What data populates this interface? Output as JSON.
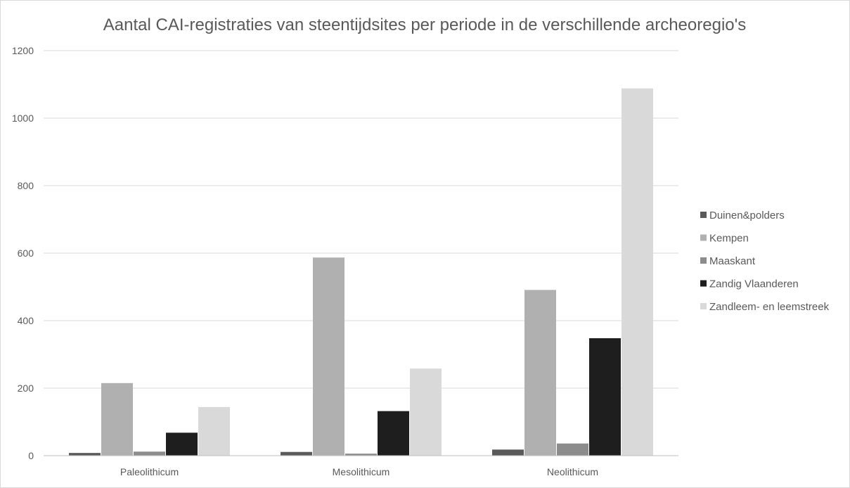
{
  "chart_data": {
    "type": "bar",
    "title": "Aantal CAI-registraties van steentijdsites per periode in de verschillende archeoregio's",
    "xlabel": "",
    "ylabel": "",
    "categories": [
      "Paleolithicum",
      "Mesolithicum",
      "Neolithicum"
    ],
    "ylim": [
      0,
      1200
    ],
    "yticks": [
      "0",
      "200",
      "400",
      "600",
      "800",
      "1000",
      "1200"
    ],
    "grid": true,
    "legend_position": "right",
    "series": [
      {
        "name": "Duinen&polders",
        "color": "#595959",
        "values": [
          8,
          11,
          18
        ]
      },
      {
        "name": "Kempen",
        "color": "#b0b0b0",
        "values": [
          215,
          587,
          491
        ]
      },
      {
        "name": "Maaskant",
        "color": "#8c8c8c",
        "values": [
          12,
          6,
          36
        ]
      },
      {
        "name": "Zandig Vlaanderen",
        "color": "#1e1e1e",
        "values": [
          68,
          132,
          348
        ]
      },
      {
        "name": "Zandleem- en leemstreek",
        "color": "#d9d9d9",
        "values": [
          144,
          258,
          1088
        ]
      }
    ]
  }
}
